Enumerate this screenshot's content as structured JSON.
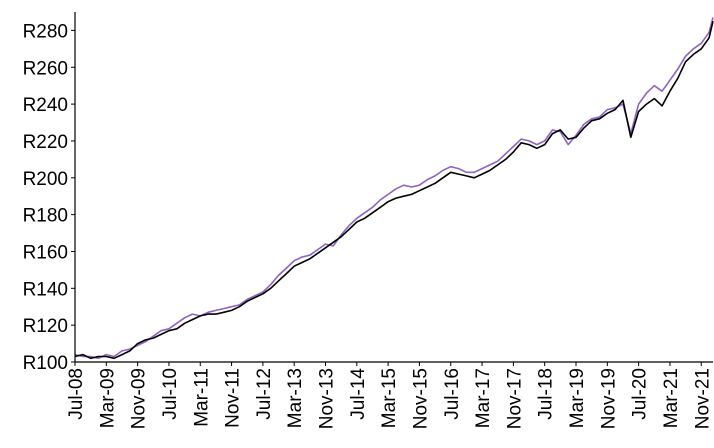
{
  "chart_data": {
    "type": "line",
    "title": "",
    "xlabel": "",
    "ylabel": "",
    "y_prefix": "R",
    "ylim": [
      100,
      290
    ],
    "yticks": [
      100,
      120,
      140,
      160,
      180,
      200,
      220,
      240,
      260,
      280
    ],
    "ytick_labels": [
      "R100",
      "R120",
      "R140",
      "R160",
      "R180",
      "R200",
      "R220",
      "R240",
      "R260",
      "R280"
    ],
    "x_start": "2008-07",
    "x_end": "2022-02",
    "xtick_labels": [
      "Jul-08",
      "Mar-09",
      "Nov-09",
      "Jul-10",
      "Mar-11",
      "Nov-11",
      "Jul-12",
      "Mar-13",
      "Nov-13",
      "Jul-14",
      "Mar-15",
      "Nov-15",
      "Jul-16",
      "Mar-17",
      "Nov-17",
      "Jul-18",
      "Mar-19",
      "Nov-19",
      "Jul-20",
      "Mar-21",
      "Nov-21"
    ],
    "grid": false,
    "legend": "none",
    "series": [
      {
        "color": "#000000",
        "points": [
          [
            "2008-07",
            103
          ],
          [
            "2008-09",
            104
          ],
          [
            "2008-11",
            102
          ],
          [
            "2009-01",
            103
          ],
          [
            "2009-03",
            103
          ],
          [
            "2009-05",
            102
          ],
          [
            "2009-07",
            104
          ],
          [
            "2009-09",
            106
          ],
          [
            "2009-11",
            110
          ],
          [
            "2010-01",
            112
          ],
          [
            "2010-03",
            113
          ],
          [
            "2010-05",
            115
          ],
          [
            "2010-07",
            117
          ],
          [
            "2010-09",
            118
          ],
          [
            "2010-11",
            121
          ],
          [
            "2011-01",
            123
          ],
          [
            "2011-03",
            125
          ],
          [
            "2011-05",
            126
          ],
          [
            "2011-07",
            126
          ],
          [
            "2011-09",
            127
          ],
          [
            "2011-11",
            128
          ],
          [
            "2012-01",
            130
          ],
          [
            "2012-03",
            133
          ],
          [
            "2012-05",
            135
          ],
          [
            "2012-07",
            137
          ],
          [
            "2012-09",
            140
          ],
          [
            "2012-11",
            144
          ],
          [
            "2013-01",
            148
          ],
          [
            "2013-03",
            152
          ],
          [
            "2013-05",
            154
          ],
          [
            "2013-07",
            156
          ],
          [
            "2013-09",
            159
          ],
          [
            "2013-11",
            162
          ],
          [
            "2014-01",
            165
          ],
          [
            "2014-03",
            168
          ],
          [
            "2014-05",
            172
          ],
          [
            "2014-07",
            176
          ],
          [
            "2014-09",
            178
          ],
          [
            "2014-11",
            181
          ],
          [
            "2015-01",
            184
          ],
          [
            "2015-03",
            187
          ],
          [
            "2015-05",
            189
          ],
          [
            "2015-07",
            190
          ],
          [
            "2015-09",
            191
          ],
          [
            "2015-11",
            193
          ],
          [
            "2016-01",
            195
          ],
          [
            "2016-03",
            197
          ],
          [
            "2016-05",
            200
          ],
          [
            "2016-07",
            203
          ],
          [
            "2016-09",
            202
          ],
          [
            "2016-11",
            201
          ],
          [
            "2017-01",
            200
          ],
          [
            "2017-03",
            202
          ],
          [
            "2017-05",
            204
          ],
          [
            "2017-07",
            207
          ],
          [
            "2017-09",
            210
          ],
          [
            "2017-11",
            214
          ],
          [
            "2018-01",
            219
          ],
          [
            "2018-03",
            218
          ],
          [
            "2018-05",
            216
          ],
          [
            "2018-07",
            218
          ],
          [
            "2018-09",
            224
          ],
          [
            "2018-11",
            226
          ],
          [
            "2019-01",
            221
          ],
          [
            "2019-03",
            222
          ],
          [
            "2019-05",
            227
          ],
          [
            "2019-07",
            231
          ],
          [
            "2019-09",
            232
          ],
          [
            "2019-11",
            235
          ],
          [
            "2020-01",
            237
          ],
          [
            "2020-03",
            242
          ],
          [
            "2020-05",
            222
          ],
          [
            "2020-07",
            236
          ],
          [
            "2020-09",
            240
          ],
          [
            "2020-11",
            243
          ],
          [
            "2021-01",
            239
          ],
          [
            "2021-03",
            247
          ],
          [
            "2021-05",
            254
          ],
          [
            "2021-07",
            263
          ],
          [
            "2021-09",
            267
          ],
          [
            "2021-11",
            270
          ],
          [
            "2022-01",
            276
          ],
          [
            "2022-02",
            285
          ]
        ]
      },
      {
        "color": "#8e63c2",
        "points": [
          [
            "2008-07",
            104
          ],
          [
            "2008-09",
            103
          ],
          [
            "2008-11",
            103
          ],
          [
            "2009-01",
            102
          ],
          [
            "2009-03",
            104
          ],
          [
            "2009-05",
            103
          ],
          [
            "2009-07",
            106
          ],
          [
            "2009-09",
            107
          ],
          [
            "2009-11",
            109
          ],
          [
            "2010-01",
            111
          ],
          [
            "2010-03",
            114
          ],
          [
            "2010-05",
            117
          ],
          [
            "2010-07",
            118
          ],
          [
            "2010-09",
            121
          ],
          [
            "2010-11",
            124
          ],
          [
            "2011-01",
            126
          ],
          [
            "2011-03",
            125
          ],
          [
            "2011-05",
            127
          ],
          [
            "2011-07",
            128
          ],
          [
            "2011-09",
            129
          ],
          [
            "2011-11",
            130
          ],
          [
            "2012-01",
            131
          ],
          [
            "2012-03",
            134
          ],
          [
            "2012-05",
            136
          ],
          [
            "2012-07",
            138
          ],
          [
            "2012-09",
            142
          ],
          [
            "2012-11",
            147
          ],
          [
            "2013-01",
            151
          ],
          [
            "2013-03",
            155
          ],
          [
            "2013-05",
            157
          ],
          [
            "2013-07",
            158
          ],
          [
            "2013-09",
            161
          ],
          [
            "2013-11",
            164
          ],
          [
            "2014-01",
            163
          ],
          [
            "2014-03",
            169
          ],
          [
            "2014-05",
            174
          ],
          [
            "2014-07",
            178
          ],
          [
            "2014-09",
            181
          ],
          [
            "2014-11",
            184
          ],
          [
            "2015-01",
            188
          ],
          [
            "2015-03",
            191
          ],
          [
            "2015-05",
            194
          ],
          [
            "2015-07",
            196
          ],
          [
            "2015-09",
            195
          ],
          [
            "2015-11",
            196
          ],
          [
            "2016-01",
            199
          ],
          [
            "2016-03",
            201
          ],
          [
            "2016-05",
            204
          ],
          [
            "2016-07",
            206
          ],
          [
            "2016-09",
            205
          ],
          [
            "2016-11",
            203
          ],
          [
            "2017-01",
            203
          ],
          [
            "2017-03",
            205
          ],
          [
            "2017-05",
            207
          ],
          [
            "2017-07",
            209
          ],
          [
            "2017-09",
            213
          ],
          [
            "2017-11",
            217
          ],
          [
            "2018-01",
            221
          ],
          [
            "2018-03",
            220
          ],
          [
            "2018-05",
            218
          ],
          [
            "2018-07",
            220
          ],
          [
            "2018-09",
            226
          ],
          [
            "2018-11",
            225
          ],
          [
            "2019-01",
            218
          ],
          [
            "2019-03",
            223
          ],
          [
            "2019-05",
            229
          ],
          [
            "2019-07",
            232
          ],
          [
            "2019-09",
            233
          ],
          [
            "2019-11",
            237
          ],
          [
            "2020-01",
            238
          ],
          [
            "2020-03",
            240
          ],
          [
            "2020-05",
            224
          ],
          [
            "2020-07",
            240
          ],
          [
            "2020-09",
            246
          ],
          [
            "2020-11",
            250
          ],
          [
            "2021-01",
            247
          ],
          [
            "2021-03",
            253
          ],
          [
            "2021-05",
            259
          ],
          [
            "2021-07",
            266
          ],
          [
            "2021-09",
            270
          ],
          [
            "2021-11",
            273
          ],
          [
            "2022-01",
            279
          ],
          [
            "2022-02",
            287
          ]
        ]
      }
    ]
  }
}
